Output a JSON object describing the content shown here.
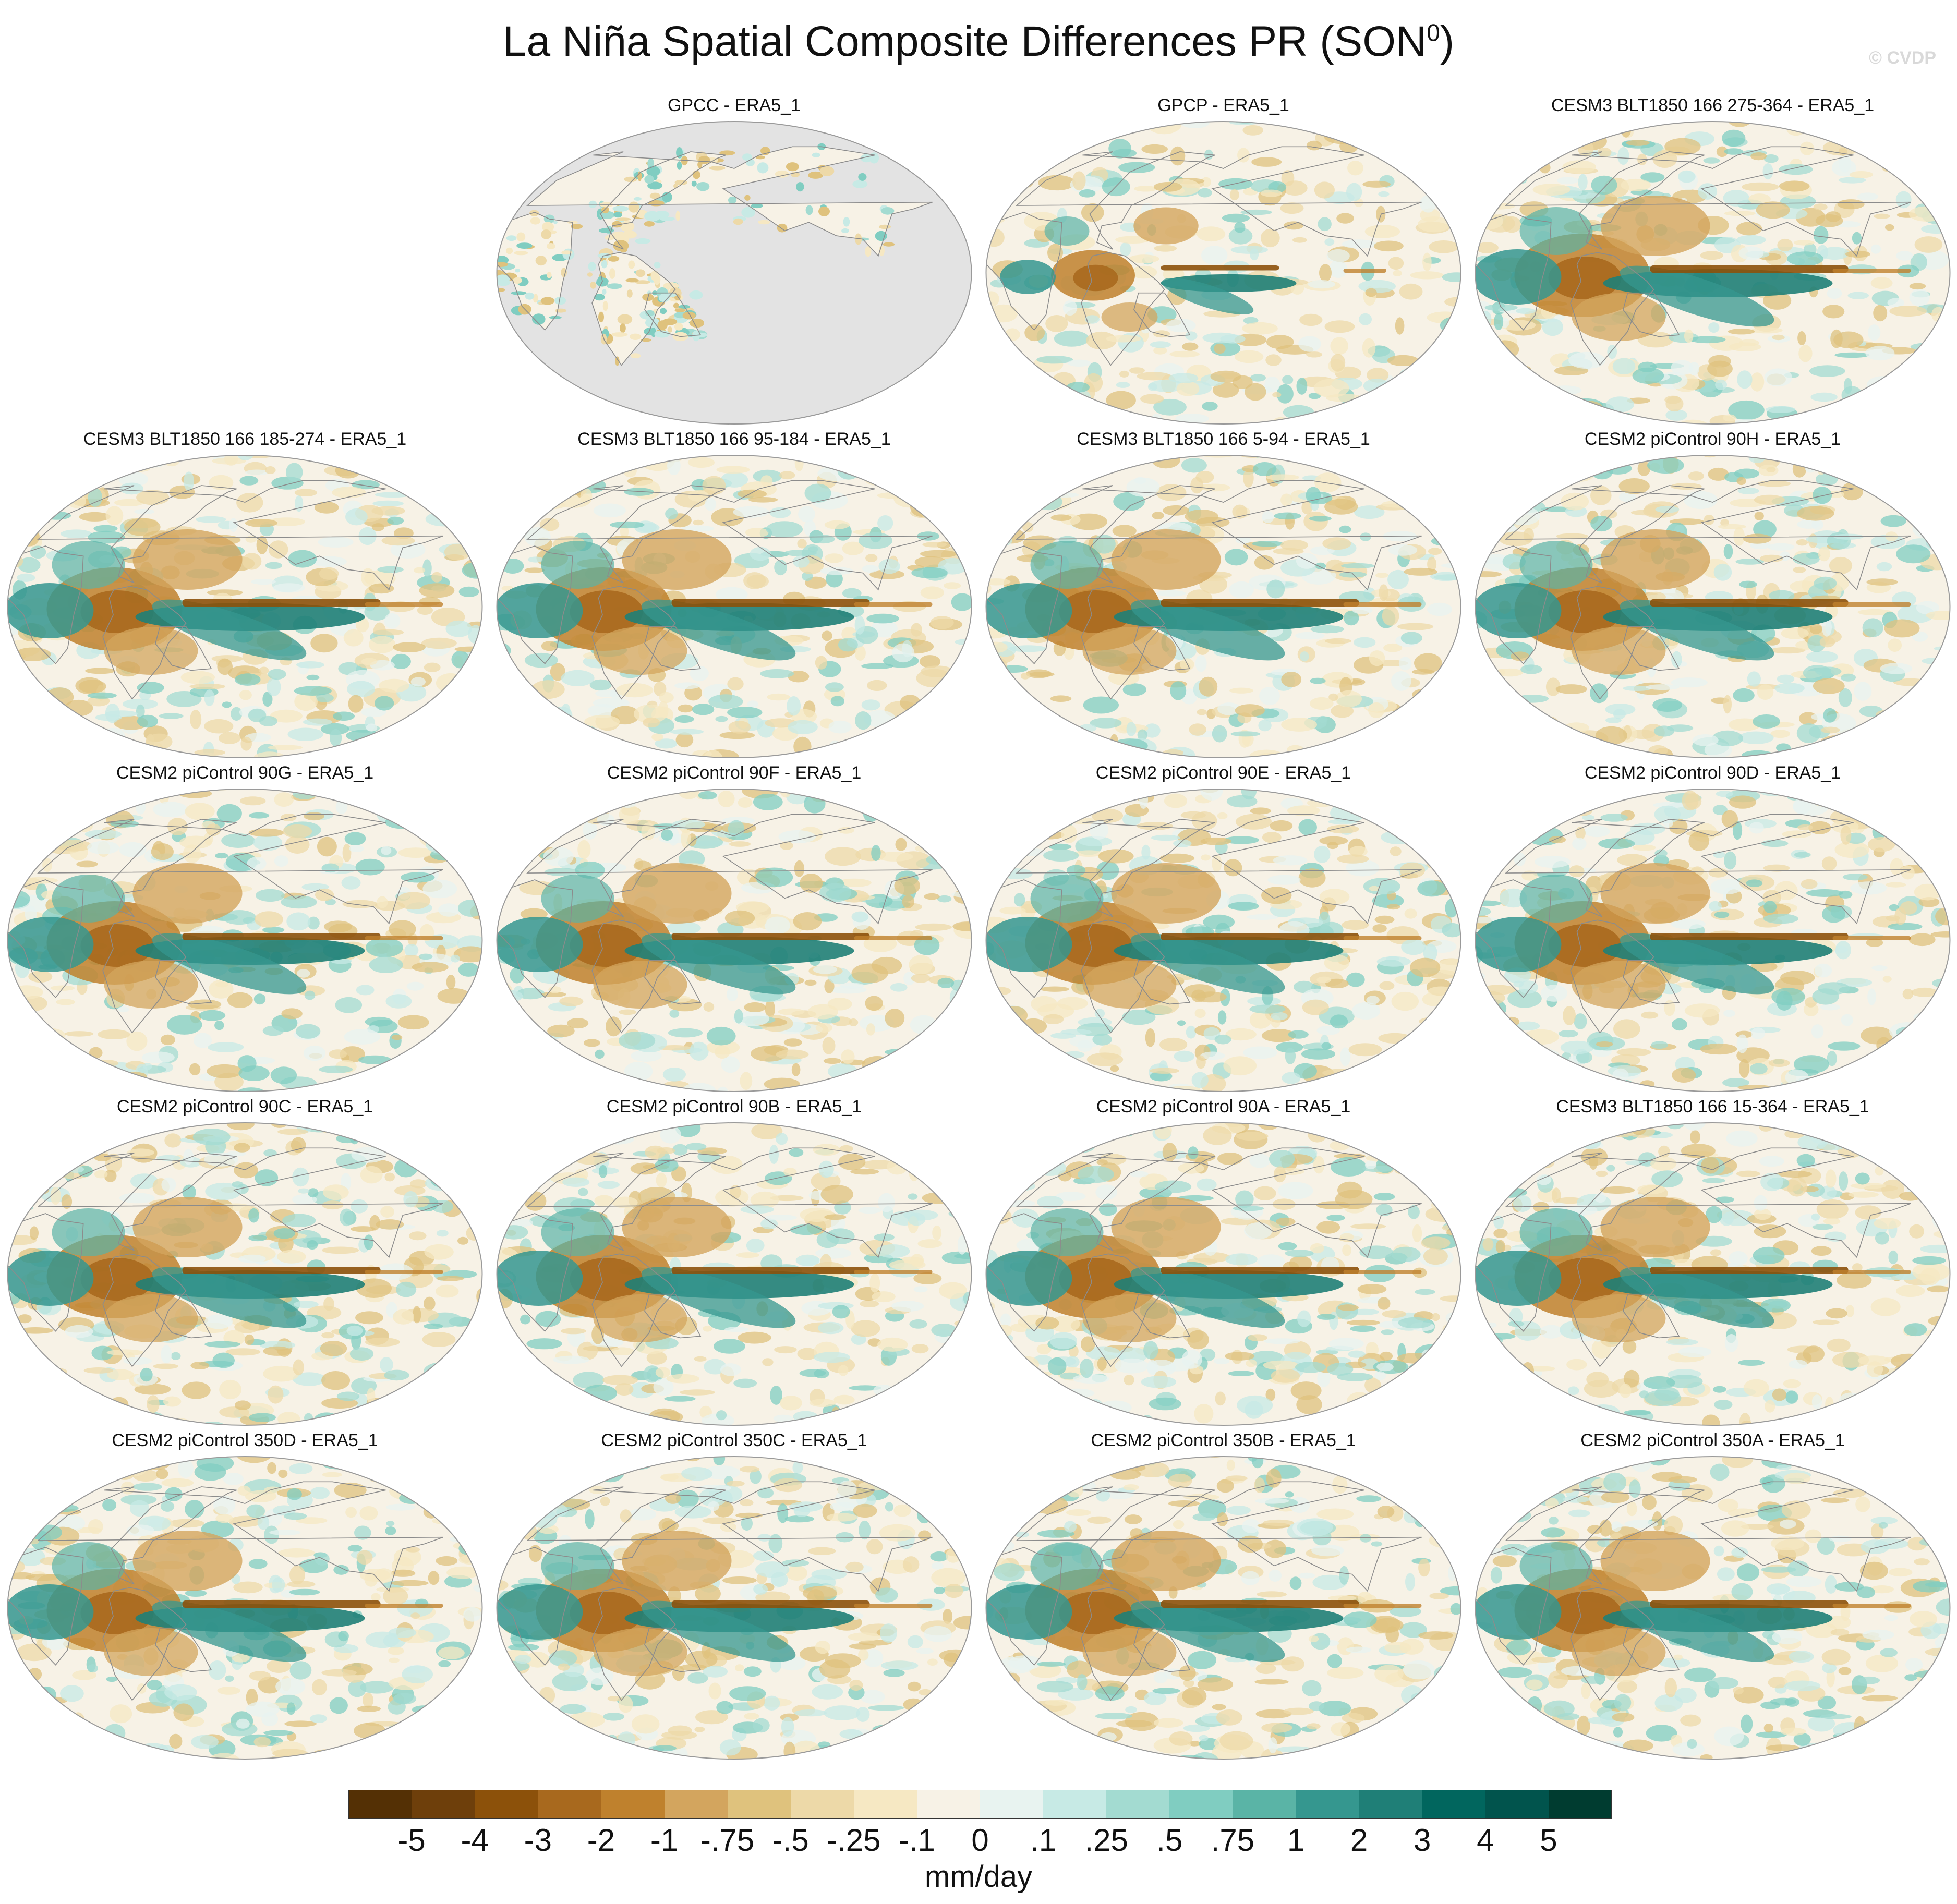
{
  "figure": {
    "title_main": "La Niña Spatial Composite Differences PR (SON",
    "title_sup": "0",
    "title_end": ")",
    "watermark": "© CVDP"
  },
  "panels": [
    {
      "label": "GPCC - ERA5_1",
      "row": 0,
      "col": 1,
      "kind": "land"
    },
    {
      "label": "GPCP - ERA5_1",
      "row": 0,
      "col": 2,
      "kind": "obs"
    },
    {
      "label": "CESM3 BLT1850 166 275-364 - ERA5_1",
      "row": 0,
      "col": 3,
      "kind": "model"
    },
    {
      "label": "CESM3 BLT1850 166 185-274 - ERA5_1",
      "row": 1,
      "col": 0,
      "kind": "model"
    },
    {
      "label": "CESM3 BLT1850 166 95-184 - ERA5_1",
      "row": 1,
      "col": 1,
      "kind": "model"
    },
    {
      "label": "CESM3 BLT1850 166 5-94 - ERA5_1",
      "row": 1,
      "col": 2,
      "kind": "model"
    },
    {
      "label": "CESM2 piControl 90H - ERA5_1",
      "row": 1,
      "col": 3,
      "kind": "model"
    },
    {
      "label": "CESM2 piControl 90G - ERA5_1",
      "row": 2,
      "col": 0,
      "kind": "model"
    },
    {
      "label": "CESM2 piControl 90F - ERA5_1",
      "row": 2,
      "col": 1,
      "kind": "model"
    },
    {
      "label": "CESM2 piControl 90E - ERA5_1",
      "row": 2,
      "col": 2,
      "kind": "model"
    },
    {
      "label": "CESM2 piControl 90D - ERA5_1",
      "row": 2,
      "col": 3,
      "kind": "model"
    },
    {
      "label": "CESM2 piControl 90C - ERA5_1",
      "row": 3,
      "col": 0,
      "kind": "model"
    },
    {
      "label": "CESM2 piControl 90B - ERA5_1",
      "row": 3,
      "col": 1,
      "kind": "model"
    },
    {
      "label": "CESM2 piControl 90A - ERA5_1",
      "row": 3,
      "col": 2,
      "kind": "model"
    },
    {
      "label": "CESM3 BLT1850 166 15-364 - ERA5_1",
      "row": 3,
      "col": 3,
      "kind": "model"
    },
    {
      "label": "CESM2 piControl 350D - ERA5_1",
      "row": 4,
      "col": 0,
      "kind": "model"
    },
    {
      "label": "CESM2 piControl 350C - ERA5_1",
      "row": 4,
      "col": 1,
      "kind": "model"
    },
    {
      "label": "CESM2 piControl 350B - ERA5_1",
      "row": 4,
      "col": 2,
      "kind": "model"
    },
    {
      "label": "CESM2 piControl 350A - ERA5_1",
      "row": 4,
      "col": 3,
      "kind": "model"
    }
  ],
  "colorbar": {
    "units": "mm/day",
    "labels": [
      "-5",
      "-4",
      "-3",
      "-2",
      "-1",
      "-.75",
      "-.5",
      "-.25",
      "-.1",
      "0",
      ".1",
      ".25",
      ".5",
      ".75",
      "1",
      "2",
      "3",
      "4",
      "5"
    ],
    "colors": [
      "#543005",
      "#6e3f0b",
      "#8c510a",
      "#a8691e",
      "#bf812d",
      "#d3a55e",
      "#dfc27d",
      "#edd9a8",
      "#f6e8c3",
      "#f7f2e6",
      "#e8f3f0",
      "#c7eae5",
      "#a3dbd1",
      "#80cdc1",
      "#5ab4a6",
      "#35978f",
      "#1f7f77",
      "#01665e",
      "#01544d",
      "#003c30"
    ]
  },
  "palette": {
    "ocean_missing": "#e3e3e3",
    "coast": "#8c8c8c",
    "outline": "#9a9a9a"
  }
}
